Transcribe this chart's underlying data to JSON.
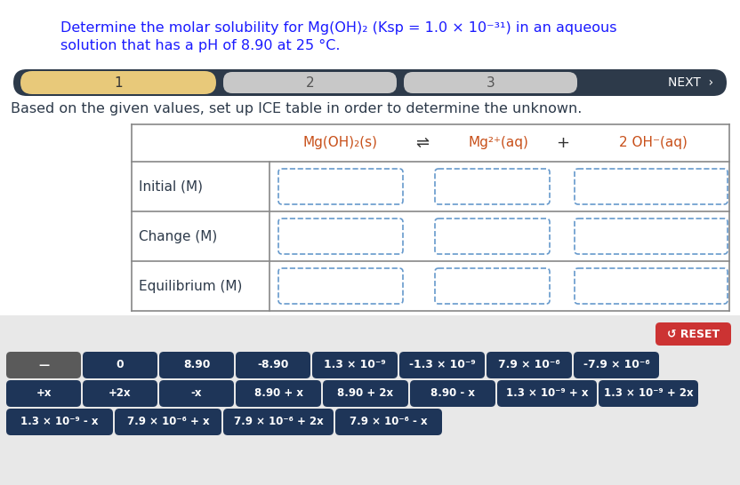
{
  "title_line1": "Determine the molar solubility for Mg(OH)₂ (Ksp = 1.0 × 10⁻³¹) in an aqueous",
  "title_line2": "solution that has a pH of 8.90 at 25 °C.",
  "title_color": "#1a1aff",
  "bg_color": "#ffffff",
  "bottom_bg_color": "#e8e8e8",
  "nav_bg_color": "#2d3a4a",
  "nav_active_color": "#e8c97a",
  "nav_inactive_color": "#c8c8c8",
  "nav_inactive_text": "#555555",
  "instruction_text": "Based on the given values, set up ICE table in order to determine the unknown.",
  "instruction_color": "#2d3a4a",
  "row_labels": [
    "Initial (M)",
    "Change (M)",
    "Equilibrium (M)"
  ],
  "header_color": "#c8501a",
  "table_line_color": "#888888",
  "dashed_box_color": "#6699cc",
  "btn_dark_color": "#1e3558",
  "btn_gray_color": "#5a5a5a",
  "btn_red_color": "#cc3333",
  "btn_text_color": "#ffffff",
  "row1_buttons": [
    "—",
    "0",
    "8.90",
    "-8.90",
    "1.3 × 10⁻⁹",
    "-1.3 × 10⁻⁹",
    "7.9 × 10⁻⁶",
    "-7.9 × 10⁻⁶"
  ],
  "row2_buttons": [
    "+x",
    "+2x",
    "-x",
    "8.90 + x",
    "8.90 + 2x",
    "8.90 - x",
    "1.3 × 10⁻⁹ + x",
    "1.3 × 10⁻⁹ + 2x"
  ],
  "row3_buttons": [
    "1.3 × 10⁻⁹ - x",
    "7.9 × 10⁻⁶ + x",
    "7.9 × 10⁻⁶ + 2x",
    "7.9 × 10⁻⁶ - x"
  ],
  "reset_label": "↺ RESET"
}
